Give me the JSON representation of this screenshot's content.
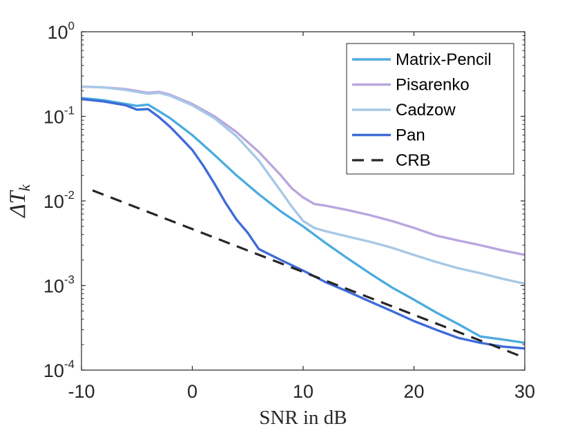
{
  "chart_data": {
    "type": "line",
    "title": "",
    "xlabel": "SNR in dB",
    "ylabel": "ΔT_k",
    "ylabel_main": "ΔT",
    "ylabel_sub": "k",
    "xlim": [
      -10,
      30
    ],
    "ylim": [
      0.0001,
      1
    ],
    "yscale": "log",
    "grid": false,
    "legend_position": "top-right",
    "x_ticks": [
      -10,
      0,
      10,
      20,
      30
    ],
    "x_tick_labels": [
      "-10",
      "0",
      "10",
      "20",
      "30"
    ],
    "y_ticks": [
      {
        "value": 1,
        "base": "10",
        "exp": "0"
      },
      {
        "value": 0.1,
        "base": "10",
        "exp": "-1"
      },
      {
        "value": 0.01,
        "base": "10",
        "exp": "-2"
      },
      {
        "value": 0.001,
        "base": "10",
        "exp": "-3"
      },
      {
        "value": 0.0001,
        "base": "10",
        "exp": "-4"
      }
    ],
    "series": [
      {
        "name": "Matrix-Pencil",
        "color": "#4DABDF",
        "dash": "solid",
        "x": [
          -10,
          -8,
          -6,
          -5,
          -4,
          -3,
          -2,
          0,
          2,
          4,
          6,
          8,
          10,
          12,
          14,
          16,
          18,
          20,
          22,
          24,
          26,
          28,
          30
        ],
        "y": [
          0.165,
          0.155,
          0.14,
          0.133,
          0.138,
          0.115,
          0.095,
          0.06,
          0.035,
          0.02,
          0.012,
          0.0075,
          0.005,
          0.0032,
          0.0021,
          0.0014,
          0.00095,
          0.00068,
          0.00048,
          0.00035,
          0.00025,
          0.00023,
          0.00021
        ]
      },
      {
        "name": "Pisarenko",
        "color": "#B9A6DF",
        "dash": "solid",
        "x": [
          -10,
          -8,
          -6,
          -4,
          -3,
          -2,
          0,
          2,
          4,
          6,
          8,
          9,
          10,
          11,
          12,
          14,
          16,
          18,
          20,
          22,
          24,
          26,
          28,
          30
        ],
        "y": [
          0.225,
          0.22,
          0.21,
          0.19,
          0.195,
          0.18,
          0.14,
          0.1,
          0.065,
          0.038,
          0.02,
          0.014,
          0.011,
          0.0092,
          0.0088,
          0.0078,
          0.0068,
          0.0058,
          0.0048,
          0.0039,
          0.0034,
          0.003,
          0.0026,
          0.0023
        ]
      },
      {
        "name": "Cadzow",
        "color": "#A7C8E6",
        "dash": "solid",
        "x": [
          -10,
          -8,
          -6,
          -4,
          -3,
          -2,
          0,
          2,
          4,
          6,
          8,
          9,
          10,
          11,
          12,
          14,
          16,
          18,
          20,
          22,
          24,
          26,
          28,
          30
        ],
        "y": [
          0.225,
          0.22,
          0.205,
          0.185,
          0.19,
          0.175,
          0.135,
          0.095,
          0.058,
          0.03,
          0.013,
          0.0085,
          0.0058,
          0.0048,
          0.0044,
          0.0038,
          0.0033,
          0.0028,
          0.0023,
          0.0019,
          0.0016,
          0.0014,
          0.0012,
          0.00105
        ]
      },
      {
        "name": "Pan",
        "color": "#3E6BD8",
        "dash": "solid",
        "x": [
          -10,
          -8,
          -6,
          -5,
          -4,
          -3,
          -2,
          -1,
          0,
          1,
          2,
          3,
          4,
          5,
          6,
          8,
          10,
          12,
          14,
          16,
          18,
          20,
          22,
          24,
          26,
          28,
          30
        ],
        "y": [
          0.16,
          0.15,
          0.135,
          0.12,
          0.122,
          0.098,
          0.075,
          0.055,
          0.04,
          0.026,
          0.016,
          0.0095,
          0.006,
          0.0042,
          0.0027,
          0.002,
          0.0015,
          0.0011,
          0.00085,
          0.00065,
          0.0005,
          0.00038,
          0.0003,
          0.00024,
          0.00021,
          0.00019,
          0.00018
        ]
      },
      {
        "name": "CRB",
        "color": "#262626",
        "dash": "dashed",
        "x": [
          -9,
          30
        ],
        "y": [
          0.0133,
          0.00014
        ]
      }
    ]
  }
}
